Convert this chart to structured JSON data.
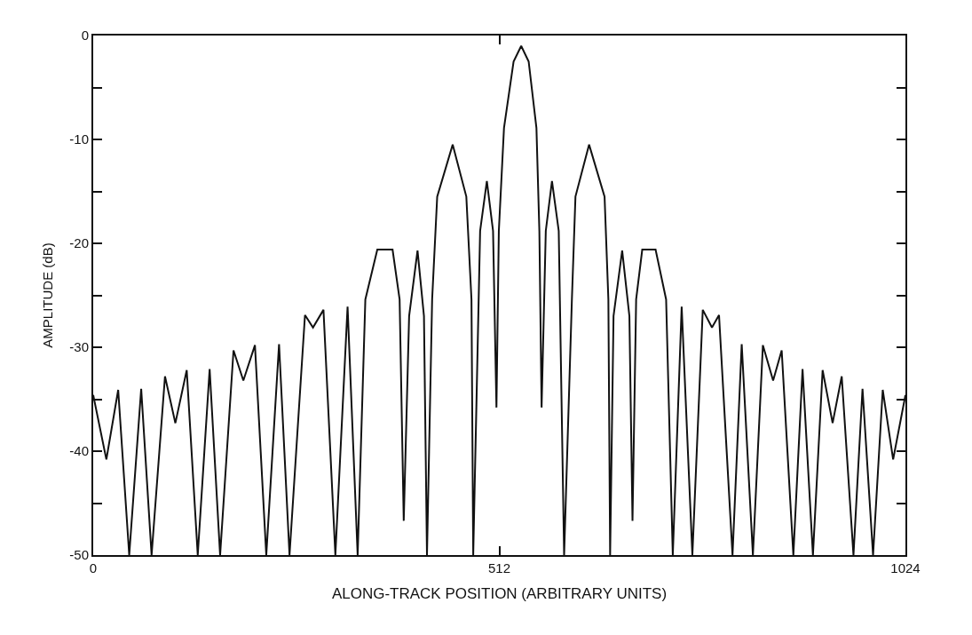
{
  "chart_data": {
    "type": "line",
    "xlabel": "ALONG-TRACK POSITION (ARBITRARY UNITS)",
    "ylabel": "AMPLITUDE (dB)",
    "xlim": [
      0,
      1024
    ],
    "xticks": [
      0,
      512,
      1024
    ],
    "ylim": [
      -50,
      0
    ],
    "yticks": [
      0,
      {
        "value": -5,
        "label": null
      },
      -10,
      {
        "value": -15,
        "label": null
      },
      -20,
      {
        "value": -25,
        "label": null
      },
      -30,
      {
        "value": -35,
        "label": null
      },
      -40,
      {
        "value": -45,
        "label": null
      },
      -50
    ],
    "marker": "none",
    "line_style": "solid",
    "series": [
      {
        "color": "#111111",
        "x": [
          0,
          16.6,
          31.5,
          45.4,
          60.5,
          73.6,
          90.5,
          103.6,
          117.9,
          131.8,
          146.8,
          160,
          176.9,
          189.3,
          203.9,
          218.2,
          234.3,
          247.5,
          267,
          277.1,
          290.3,
          305.3,
          320.7,
          333.4,
          343.1,
          358.2,
          377.4,
          386.3,
          391.5,
          398.3,
          408.9,
          417,
          420.8,
          427.3,
          433.7,
          453.2,
          470.4,
          476.9,
          479.1,
          487.8,
          496.3,
          504.1,
          508.4,
          511.4,
          517.9,
          530,
          539.6,
          549,
          558.8,
          562.5,
          565.3,
          570.6,
          578.4,
          586.9,
          593.7,
          603.5,
          608,
          625.2,
          644.7,
          649.5,
          651.7,
          656,
          666.9,
          676,
          679.9,
          684.5,
          692.2,
          709,
          722.3,
          730.7,
          741.9,
          755.4,
          768.5,
          780.1,
          789.0,
          806.0,
          817.6,
          831.7,
          844.3,
          857.2,
          868.0,
          882.7,
          894.3,
          907.4,
          919.6,
          932.2,
          943.7,
          958.5,
          969.9,
          983.2,
          995.4,
          1008.5,
          1024
        ],
        "values": [
          -34.6,
          -40.8,
          -34.1,
          -50,
          -34.0,
          -50,
          -32.8,
          -37.3,
          -32.2,
          -50,
          -32.1,
          -50,
          -30.3,
          -33.2,
          -29.8,
          -50,
          -29.7,
          -50,
          -26.9,
          -28.1,
          -26.4,
          -50,
          -26.1,
          -50,
          -25.4,
          -20.6,
          -20.6,
          -25.4,
          -46.7,
          -27.0,
          -20.7,
          -27.0,
          -50,
          -25.4,
          -15.5,
          -10.5,
          -15.5,
          -25.4,
          -50,
          -18.8,
          -14.0,
          -18.8,
          -35.8,
          -18.8,
          -8.9,
          -2.5,
          -1.0,
          -2.5,
          -8.9,
          -18.8,
          -35.8,
          -18.8,
          -14.0,
          -18.8,
          -50,
          -25.4,
          -15.5,
          -10.5,
          -15.5,
          -25.4,
          -50,
          -27.0,
          -20.7,
          -27.0,
          -46.7,
          -25.4,
          -20.6,
          -20.6,
          -25.4,
          -50,
          -26.1,
          -50,
          -26.4,
          -28.1,
          -26.9,
          -50,
          -29.7,
          -50,
          -29.8,
          -33.2,
          -30.3,
          -50,
          -32.1,
          -50,
          -32.2,
          -37.3,
          -32.8,
          -50,
          -34.0,
          -50,
          -34.1,
          -40.8,
          -34.6
        ]
      }
    ]
  }
}
